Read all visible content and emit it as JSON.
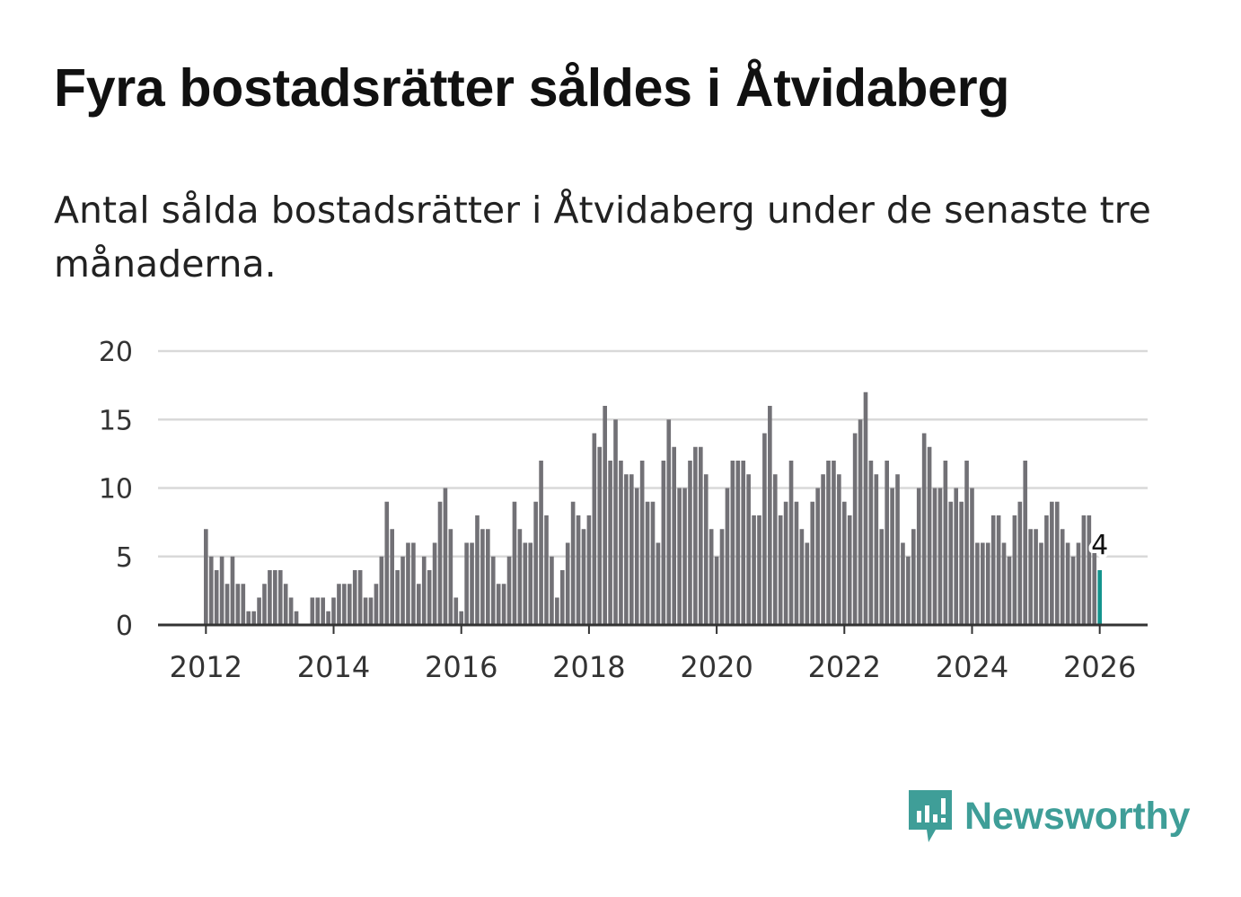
{
  "title": "Fyra bostadsrätter såldes i Åtvidaberg",
  "subtitle": "Antal sålda bostadsrätter i Åtvidaberg under de senaste tre månaderna.",
  "brand": {
    "name": "Newsworthy",
    "color": "#3f9e98",
    "icon": "newsworthy-logo-icon"
  },
  "colors": {
    "bar": "#727176",
    "highlight": "#13948d",
    "grid": "#d9d9d9",
    "axis": "#333333"
  },
  "chart_data": {
    "type": "bar",
    "title": "Fyra bostadsrätter såldes i Åtvidaberg",
    "xlabel": "",
    "ylabel": "",
    "ylim": [
      0,
      20
    ],
    "yticks": [
      0,
      5,
      10,
      15,
      20
    ],
    "xticks": [
      "2012",
      "2014",
      "2016",
      "2018",
      "2020",
      "2022",
      "2024",
      "2026"
    ],
    "x_start": "2012-01",
    "x_end": "2026-01",
    "x_domain": [
      2011.25,
      2026.75
    ],
    "grid": true,
    "legend": "none",
    "values": [
      7,
      5,
      4,
      5,
      3,
      5,
      3,
      3,
      1,
      1,
      2,
      3,
      4,
      4,
      4,
      3,
      2,
      1,
      0,
      0,
      2,
      2,
      2,
      1,
      2,
      3,
      3,
      3,
      4,
      4,
      2,
      2,
      3,
      5,
      9,
      7,
      4,
      5,
      6,
      6,
      3,
      5,
      4,
      6,
      9,
      10,
      7,
      2,
      1,
      6,
      6,
      8,
      7,
      7,
      5,
      3,
      3,
      5,
      9,
      7,
      6,
      6,
      9,
      12,
      8,
      5,
      2,
      4,
      6,
      9,
      8,
      7,
      8,
      14,
      13,
      16,
      12,
      15,
      12,
      11,
      11,
      10,
      12,
      9,
      9,
      6,
      12,
      15,
      13,
      10,
      10,
      12,
      13,
      13,
      11,
      7,
      5,
      7,
      10,
      12,
      12,
      12,
      11,
      8,
      8,
      14,
      16,
      11,
      8,
      9,
      12,
      9,
      7,
      6,
      9,
      10,
      11,
      12,
      12,
      11,
      9,
      8,
      14,
      15,
      17,
      12,
      11,
      7,
      12,
      10,
      11,
      6,
      5,
      7,
      10,
      14,
      13,
      10,
      10,
      12,
      9,
      10,
      9,
      12,
      10,
      6,
      6,
      6,
      8,
      8,
      6,
      5,
      8,
      9,
      12,
      7,
      7,
      6,
      8,
      9,
      9,
      7,
      6,
      5,
      6,
      8,
      8,
      6,
      4
    ],
    "highlight": {
      "label": "2026-01",
      "value": 4,
      "data_label": "4"
    }
  }
}
